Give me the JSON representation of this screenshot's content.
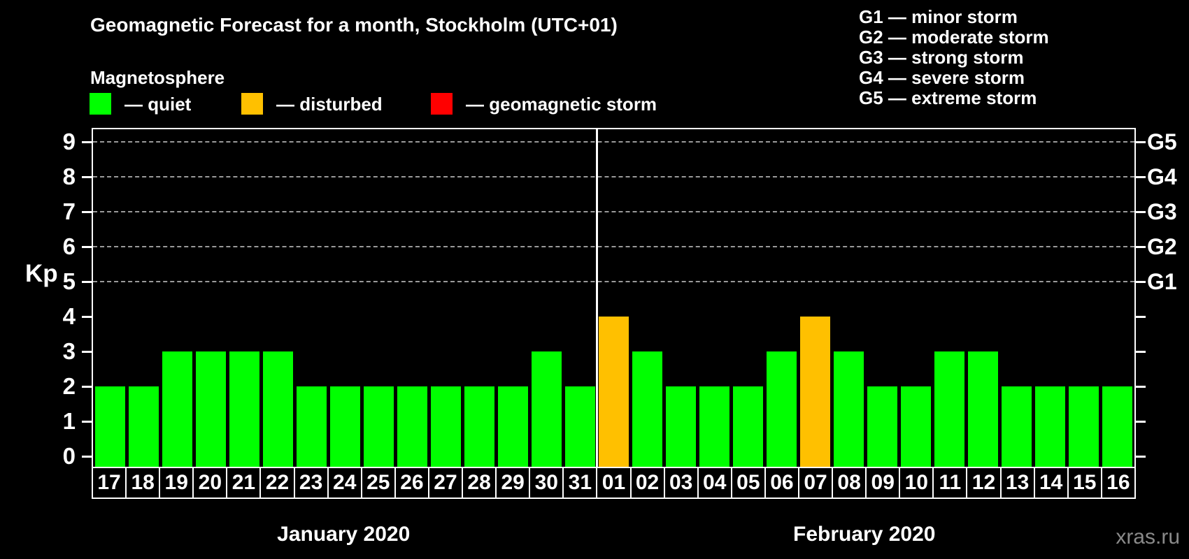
{
  "title": "Geomagnetic Forecast for a month, Stockholm (UTC+01)",
  "subtitle": "Magnetosphere",
  "legend": {
    "items": [
      {
        "name": "quiet",
        "label": "— quiet",
        "color": "#00ff00"
      },
      {
        "name": "disturbed",
        "label": "— disturbed",
        "color": "#ffc000"
      },
      {
        "name": "storm",
        "label": "— geomagnetic storm",
        "color": "#ff0000"
      }
    ]
  },
  "g_scale_legend": [
    "G1 — minor storm",
    "G2 — moderate storm",
    "G3 — strong storm",
    "G4 — severe storm",
    "G5 — extreme storm"
  ],
  "y_axis": {
    "label": "Kp",
    "ticks": [
      0,
      1,
      2,
      3,
      4,
      5,
      6,
      7,
      8,
      9
    ]
  },
  "right_axis": {
    "labels": [
      {
        "text": "G5",
        "kp": 9
      },
      {
        "text": "G4",
        "kp": 8
      },
      {
        "text": "G3",
        "kp": 7
      },
      {
        "text": "G2",
        "kp": 6
      },
      {
        "text": "G1",
        "kp": 5
      }
    ]
  },
  "months": [
    {
      "label": "January 2020",
      "days": 15
    },
    {
      "label": "February 2020",
      "days": 16
    }
  ],
  "watermark": "xras.ru",
  "chart_data": {
    "type": "bar",
    "title": "Geomagnetic Forecast for a month, Stockholm (UTC+01)",
    "xlabel": "",
    "ylabel": "Kp",
    "ylim": [
      0,
      9
    ],
    "grid": "dashed horizontal lines at Kp 5,6,7,8,9 (G1–G5 levels)",
    "legend_position": "top",
    "categories": [
      "17",
      "18",
      "19",
      "20",
      "21",
      "22",
      "23",
      "24",
      "25",
      "26",
      "27",
      "28",
      "29",
      "30",
      "31",
      "01",
      "02",
      "03",
      "04",
      "05",
      "06",
      "07",
      "08",
      "09",
      "10",
      "11",
      "12",
      "13",
      "14",
      "15",
      "16"
    ],
    "values": [
      2,
      2,
      3,
      3,
      3,
      3,
      2,
      2,
      2,
      2,
      2,
      2,
      2,
      3,
      2,
      4,
      3,
      2,
      2,
      2,
      3,
      4,
      3,
      2,
      2,
      3,
      3,
      2,
      2,
      2,
      2
    ],
    "statuses": [
      "quiet",
      "quiet",
      "quiet",
      "quiet",
      "quiet",
      "quiet",
      "quiet",
      "quiet",
      "quiet",
      "quiet",
      "quiet",
      "quiet",
      "quiet",
      "quiet",
      "quiet",
      "disturbed",
      "quiet",
      "quiet",
      "quiet",
      "quiet",
      "quiet",
      "disturbed",
      "quiet",
      "quiet",
      "quiet",
      "quiet",
      "quiet",
      "quiet",
      "quiet",
      "quiet",
      "quiet"
    ],
    "month_split": 15
  }
}
